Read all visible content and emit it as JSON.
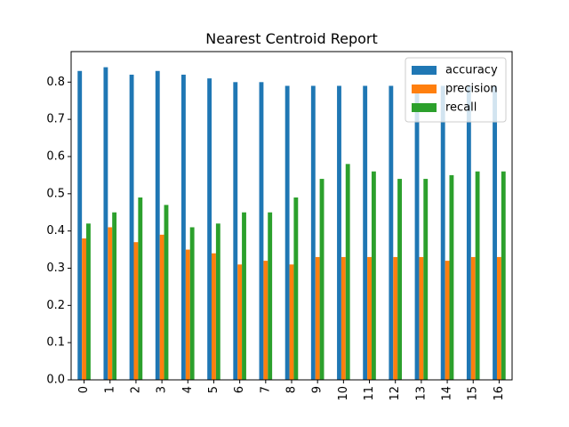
{
  "chart_data": {
    "type": "bar",
    "title": "Nearest Centroid Report",
    "xlabel": "",
    "ylabel": "",
    "categories": [
      "0",
      "1",
      "2",
      "3",
      "4",
      "5",
      "6",
      "7",
      "8",
      "9",
      "10",
      "11",
      "12",
      "13",
      "14",
      "15",
      "16"
    ],
    "series": [
      {
        "name": "accuracy",
        "color": "#1f77b4",
        "values": [
          0.83,
          0.84,
          0.82,
          0.83,
          0.82,
          0.81,
          0.8,
          0.8,
          0.79,
          0.79,
          0.79,
          0.79,
          0.79,
          0.79,
          0.79,
          0.79,
          0.79
        ]
      },
      {
        "name": "precision",
        "color": "#ff7f0e",
        "values": [
          0.38,
          0.41,
          0.37,
          0.39,
          0.35,
          0.34,
          0.31,
          0.32,
          0.31,
          0.33,
          0.33,
          0.33,
          0.33,
          0.33,
          0.32,
          0.33,
          0.33
        ]
      },
      {
        "name": "recall",
        "color": "#2ca02c",
        "values": [
          0.42,
          0.45,
          0.49,
          0.47,
          0.41,
          0.42,
          0.45,
          0.45,
          0.49,
          0.54,
          0.58,
          0.56,
          0.54,
          0.54,
          0.55,
          0.56,
          0.56
        ]
      }
    ],
    "ylim": [
      0,
      0.882
    ],
    "yticks": [
      0.0,
      0.1,
      0.2,
      0.3,
      0.4,
      0.5,
      0.6,
      0.7,
      0.8
    ],
    "ytick_labels": [
      "0.0",
      "0.1",
      "0.2",
      "0.3",
      "0.4",
      "0.5",
      "0.6",
      "0.7",
      "0.8"
    ],
    "legend_position": "top-right",
    "grid": false
  }
}
